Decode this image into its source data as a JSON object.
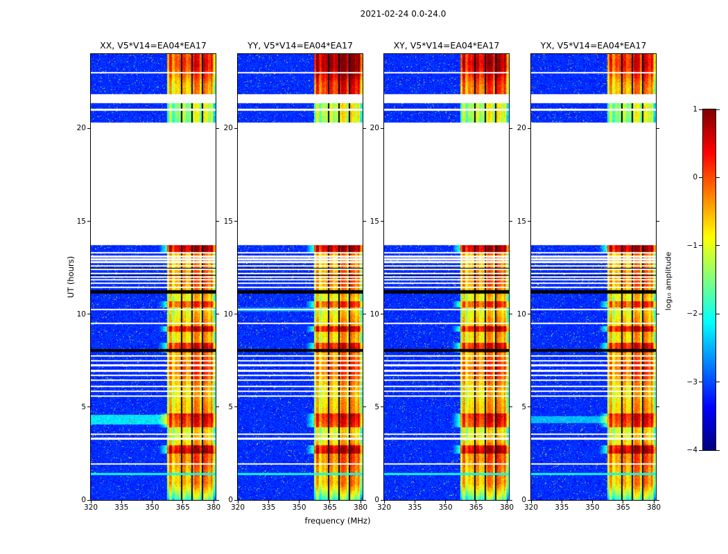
{
  "chart_data": {
    "type": "heatmap",
    "title": "2021-02-24 0.0-24.0",
    "xlabel": "frequency (MHz)",
    "ylabel": "UT (hours)",
    "x_range": [
      320,
      381
    ],
    "y_range": [
      0,
      24
    ],
    "x_ticks": [
      320,
      335,
      350,
      365,
      380
    ],
    "y_ticks": [
      0,
      5,
      10,
      15,
      20
    ],
    "panels": [
      {
        "corr": "XX",
        "label": "XX, V5*V14=EA04*EA17"
      },
      {
        "corr": "YY",
        "label": "YY, V5*V14=EA04*EA17"
      },
      {
        "corr": "XY",
        "label": "XY, V5*V14=EA04*EA17"
      },
      {
        "corr": "YX",
        "label": "YX, V5*V14=EA04*EA17"
      }
    ],
    "colorbar": {
      "label": "log₁₀ amplitude",
      "range": [
        -4,
        1
      ],
      "ticks": [
        1,
        0,
        -1,
        -2,
        -3,
        -4
      ],
      "tick_labels": [
        "1",
        "0",
        "−1",
        "−2",
        "−3",
        "−4"
      ]
    },
    "background_level": -3.4,
    "data_blocks": [
      [
        0,
        13.7
      ],
      [
        20.3,
        21.35
      ],
      [
        21.85,
        24
      ]
    ],
    "rfi_band": {
      "freq_start": 357.2,
      "freq_end": 381,
      "base_level": -1.35,
      "notch_freqs": [
        364.5,
        369.5,
        374.5
      ]
    },
    "hot_intervals": [
      [
        2.5,
        2.95
      ],
      [
        3.9,
        4.65
      ],
      [
        7.95,
        8.45
      ],
      [
        9.05,
        9.35
      ],
      [
        10.35,
        10.7
      ],
      [
        13.35,
        13.85
      ]
    ],
    "white_lines": [
      1.95,
      3.3,
      3.55,
      5.6,
      5.85,
      6.1,
      6.45,
      6.7,
      6.95,
      7.25,
      7.5,
      7.75,
      9.5,
      10.25,
      11.45,
      11.65,
      11.85,
      12.0,
      12.2,
      12.4,
      12.6,
      12.8,
      12.95,
      13.1,
      13.3,
      21.0,
      23.0
    ],
    "black_intervals": [
      [
        7.98,
        8.12
      ],
      [
        11.12,
        11.3
      ],
      [
        12.08,
        12.12
      ],
      [
        12.46,
        12.5
      ]
    ],
    "cyan_lines": [
      1.4
    ],
    "smears": [
      {
        "panel": 0,
        "range": [
          4.05,
          4.6
        ],
        "boost": 0.9
      },
      {
        "panel": 3,
        "range": [
          4.15,
          4.5
        ],
        "boost": 0.7
      },
      {
        "panel": 1,
        "range": [
          10.15,
          10.35
        ],
        "boost": 0.5
      }
    ],
    "top_block_band_boost": [
      0.35,
      1.1,
      0.8,
      0.45
    ]
  }
}
